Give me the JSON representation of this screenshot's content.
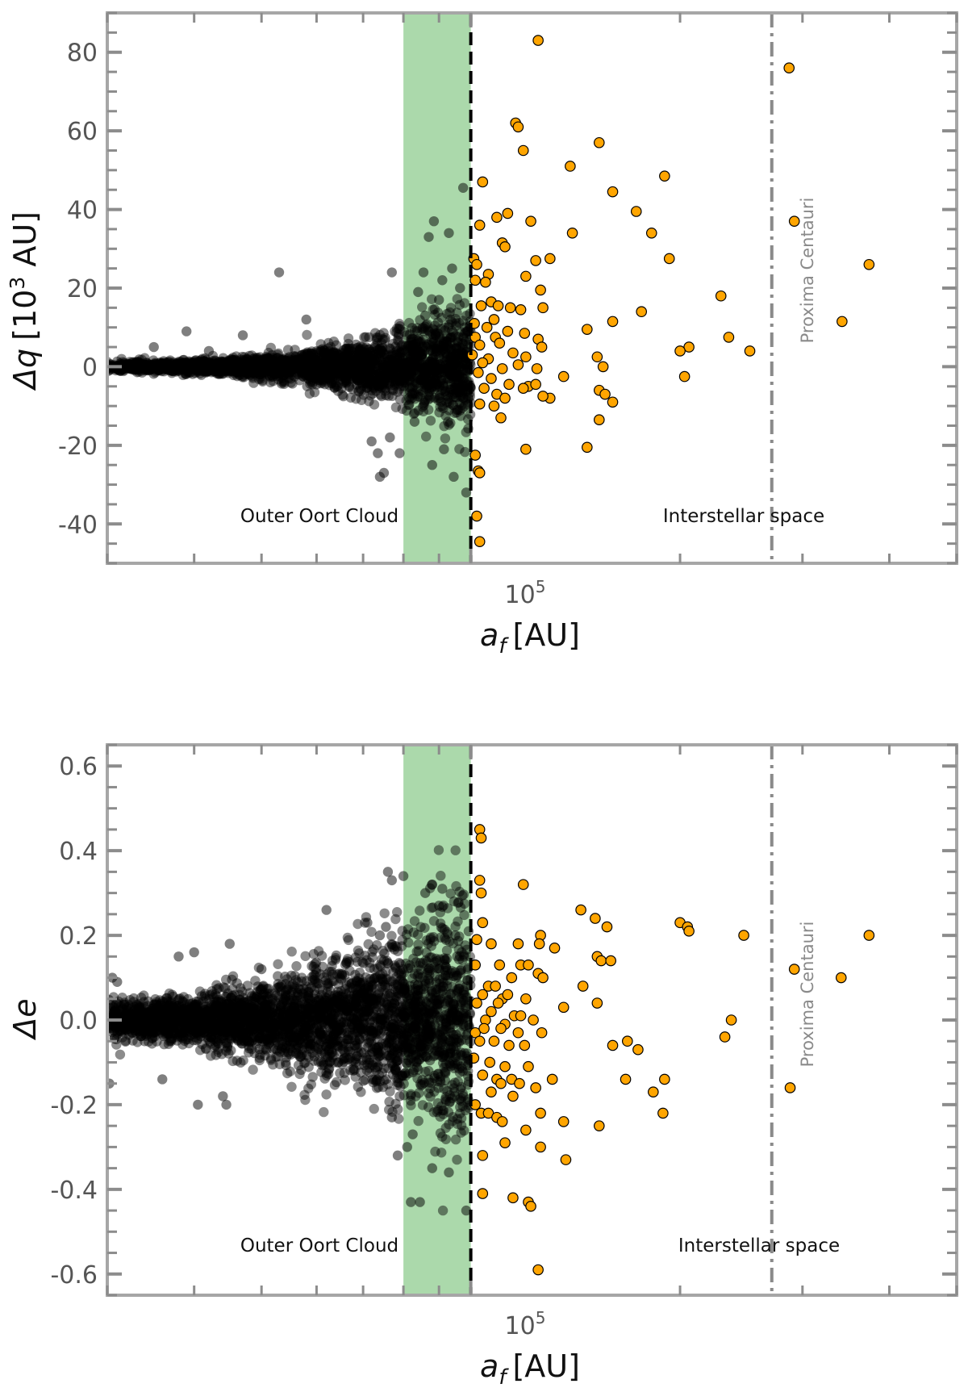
{
  "chart_data": [
    {
      "type": "scatter",
      "panel": "top",
      "xlabel_base": "a",
      "xlabel_sub": "f",
      "xlabel_unit": "[AU]",
      "ylabel_base": "Δq",
      "ylabel_unit_pre": "[10",
      "ylabel_unit_exp": "3",
      "ylabel_unit_post": " AU]",
      "x_scale": "log",
      "xlim": [
        30000,
        500000
      ],
      "ylim": [
        -50,
        90
      ],
      "x_tick_label_base": "10",
      "x_tick_label_exp": "5",
      "y_ticks": [
        80,
        60,
        40,
        20,
        0,
        -20,
        -40
      ],
      "y_tick_labels": [
        "80",
        "60",
        "40",
        "20",
        "0",
        "-20",
        "-40"
      ],
      "shaded_band": {
        "x_from": 80000,
        "x_to": 100000,
        "color": "#2ca02c"
      },
      "boundary_line": {
        "x": 100000,
        "style": "dashed",
        "color": "#000000"
      },
      "reference_line": {
        "x": 271000,
        "label": "Proxima Centauri",
        "style": "dash-dot",
        "color": "#8a8a8a"
      },
      "region_labels": [
        "Outer Oort Cloud",
        "Interstellar space"
      ],
      "inner_cloud": {
        "count": 2600,
        "seed": 11,
        "spread_base": 0.6,
        "spread_end": 8,
        "spread_power": 2.6,
        "color": "#000000"
      },
      "black_outliers": [
        {
          "x": 97500,
          "y": 45.5
        },
        {
          "x": 88500,
          "y": 37
        },
        {
          "x": 93000,
          "y": 34
        },
        {
          "x": 87000,
          "y": 33
        },
        {
          "x": 94000,
          "y": 25
        },
        {
          "x": 85500,
          "y": 24
        },
        {
          "x": 77000,
          "y": 24
        },
        {
          "x": 91000,
          "y": 22
        },
        {
          "x": 96500,
          "y": 20
        },
        {
          "x": 84000,
          "y": 19
        },
        {
          "x": 90000,
          "y": 17
        },
        {
          "x": 86000,
          "y": 13
        },
        {
          "x": 93500,
          "y": 12
        },
        {
          "x": 98000,
          "y": 10
        },
        {
          "x": 73500,
          "y": -22
        },
        {
          "x": 75000,
          "y": -27
        },
        {
          "x": 74000,
          "y": -28
        },
        {
          "x": 79000,
          "y": -22
        },
        {
          "x": 88000,
          "y": -25
        },
        {
          "x": 94500,
          "y": -28
        },
        {
          "x": 98500,
          "y": -32
        },
        {
          "x": 72000,
          "y": -19
        },
        {
          "x": 76500,
          "y": -18
        },
        {
          "x": 83000,
          "y": -14
        },
        {
          "x": 91500,
          "y": -21
        },
        {
          "x": 95500,
          "y": -11
        },
        {
          "x": 35000,
          "y": 5
        },
        {
          "x": 39000,
          "y": 9
        },
        {
          "x": 47000,
          "y": 8
        },
        {
          "x": 42000,
          "y": 4
        },
        {
          "x": 53000,
          "y": 24
        },
        {
          "x": 58000,
          "y": 12
        }
      ],
      "orange_points": [
        {
          "x": 125000,
          "y": 83
        },
        {
          "x": 287000,
          "y": 76
        },
        {
          "x": 116000,
          "y": 62
        },
        {
          "x": 117000,
          "y": 61
        },
        {
          "x": 153000,
          "y": 57
        },
        {
          "x": 119000,
          "y": 55
        },
        {
          "x": 139000,
          "y": 51
        },
        {
          "x": 190000,
          "y": 48.5
        },
        {
          "x": 104000,
          "y": 47
        },
        {
          "x": 160000,
          "y": 44.5
        },
        {
          "x": 173000,
          "y": 39.5
        },
        {
          "x": 113000,
          "y": 39
        },
        {
          "x": 109000,
          "y": 38
        },
        {
          "x": 122000,
          "y": 37
        },
        {
          "x": 292000,
          "y": 37
        },
        {
          "x": 103000,
          "y": 36
        },
        {
          "x": 140000,
          "y": 34
        },
        {
          "x": 182000,
          "y": 34
        },
        {
          "x": 111000,
          "y": 31.5
        },
        {
          "x": 101000,
          "y": 27.5
        },
        {
          "x": 112000,
          "y": 30.5
        },
        {
          "x": 130000,
          "y": 27.5
        },
        {
          "x": 193000,
          "y": 27.5
        },
        {
          "x": 102000,
          "y": 26
        },
        {
          "x": 124000,
          "y": 27
        },
        {
          "x": 374000,
          "y": 26
        },
        {
          "x": 106000,
          "y": 23.5
        },
        {
          "x": 120000,
          "y": 23
        },
        {
          "x": 101500,
          "y": 22
        },
        {
          "x": 105000,
          "y": 21.5
        },
        {
          "x": 126000,
          "y": 19.5
        },
        {
          "x": 229000,
          "y": 18
        },
        {
          "x": 107000,
          "y": 16.5
        },
        {
          "x": 103500,
          "y": 15.5
        },
        {
          "x": 109500,
          "y": 15.5
        },
        {
          "x": 114000,
          "y": 15
        },
        {
          "x": 127000,
          "y": 15
        },
        {
          "x": 118000,
          "y": 14.5
        },
        {
          "x": 176000,
          "y": 14
        },
        {
          "x": 108000,
          "y": 12
        },
        {
          "x": 160000,
          "y": 11.5
        },
        {
          "x": 342000,
          "y": 11.5
        },
        {
          "x": 101200,
          "y": 11
        },
        {
          "x": 105500,
          "y": 10
        },
        {
          "x": 147000,
          "y": 9.5
        },
        {
          "x": 113000,
          "y": 9
        },
        {
          "x": 119500,
          "y": 8.5
        },
        {
          "x": 101500,
          "y": 7.5
        },
        {
          "x": 235000,
          "y": 7.5
        },
        {
          "x": 108500,
          "y": 7.5
        },
        {
          "x": 125000,
          "y": 7
        },
        {
          "x": 110000,
          "y": 6
        },
        {
          "x": 103000,
          "y": 5.5
        },
        {
          "x": 126500,
          "y": 5
        },
        {
          "x": 206000,
          "y": 5
        },
        {
          "x": 200000,
          "y": 4
        },
        {
          "x": 252000,
          "y": 4
        },
        {
          "x": 100500,
          "y": 3
        },
        {
          "x": 115000,
          "y": 3.5
        },
        {
          "x": 120000,
          "y": 2.5
        },
        {
          "x": 106000,
          "y": 2
        },
        {
          "x": 152000,
          "y": 2.5
        },
        {
          "x": 104000,
          "y": 1
        },
        {
          "x": 117000,
          "y": 0.5
        },
        {
          "x": 111000,
          "y": -0.5
        },
        {
          "x": 124500,
          "y": -0.5
        },
        {
          "x": 155000,
          "y": 0
        },
        {
          "x": 102500,
          "y": -1.5
        },
        {
          "x": 136000,
          "y": -2.5
        },
        {
          "x": 203000,
          "y": -2.5
        },
        {
          "x": 107000,
          "y": -3
        },
        {
          "x": 113500,
          "y": -4.5
        },
        {
          "x": 121000,
          "y": -5
        },
        {
          "x": 119000,
          "y": -5.5
        },
        {
          "x": 124000,
          "y": -4.5
        },
        {
          "x": 104500,
          "y": -5.5
        },
        {
          "x": 153000,
          "y": -6
        },
        {
          "x": 109000,
          "y": -7
        },
        {
          "x": 156000,
          "y": -7
        },
        {
          "x": 130000,
          "y": -8
        },
        {
          "x": 112000,
          "y": -8
        },
        {
          "x": 127000,
          "y": -7.5
        },
        {
          "x": 160000,
          "y": -9
        },
        {
          "x": 103000,
          "y": -9.5
        },
        {
          "x": 108000,
          "y": -10
        },
        {
          "x": 153000,
          "y": -13.5
        },
        {
          "x": 110500,
          "y": -13
        },
        {
          "x": 147000,
          "y": -20.5
        },
        {
          "x": 120000,
          "y": -21
        },
        {
          "x": 101500,
          "y": -22.5
        },
        {
          "x": 102500,
          "y": -26.5
        },
        {
          "x": 103000,
          "y": -27
        },
        {
          "x": 102000,
          "y": -38
        },
        {
          "x": 103000,
          "y": -44.5
        }
      ]
    },
    {
      "type": "scatter",
      "panel": "bottom",
      "xlabel_base": "a",
      "xlabel_sub": "f",
      "xlabel_unit": "[AU]",
      "ylabel": "Δe",
      "x_scale": "log",
      "xlim": [
        30000,
        500000
      ],
      "ylim": [
        -0.65,
        0.65
      ],
      "x_tick_label_base": "10",
      "x_tick_label_exp": "5",
      "y_ticks": [
        0.6,
        0.4,
        0.2,
        0.0,
        -0.2,
        -0.4,
        -0.6
      ],
      "y_tick_labels": [
        "0.6",
        "0.4",
        "0.2",
        "0.0",
        "-0.2",
        "-0.4",
        "-0.6"
      ],
      "shaded_band": {
        "x_from": 80000,
        "x_to": 100000,
        "color": "#2ca02c"
      },
      "boundary_line": {
        "x": 100000,
        "style": "dashed",
        "color": "#000000"
      },
      "reference_line": {
        "x": 271000,
        "label": "Proxima Centauri",
        "style": "dash-dot",
        "color": "#8a8a8a"
      },
      "region_labels": [
        "Outer Oort Cloud",
        "Interstellar space"
      ],
      "inner_cloud": {
        "count": 3200,
        "seed": 29,
        "spread_base": 0.022,
        "spread_end": 0.14,
        "spread_power": 1.9,
        "color": "#000000"
      },
      "black_outliers": [
        {
          "x": 30500,
          "y": 0.1
        },
        {
          "x": 31000,
          "y": 0.09
        },
        {
          "x": 30200,
          "y": -0.15
        },
        {
          "x": 36000,
          "y": -0.14
        },
        {
          "x": 38000,
          "y": 0.15
        },
        {
          "x": 40000,
          "y": 0.16
        },
        {
          "x": 40500,
          "y": -0.2
        },
        {
          "x": 44000,
          "y": -0.18
        },
        {
          "x": 44500,
          "y": -0.2
        },
        {
          "x": 45000,
          "y": 0.18
        },
        {
          "x": 50000,
          "y": 0.12
        },
        {
          "x": 62000,
          "y": 0.26
        },
        {
          "x": 71000,
          "y": 0.23
        },
        {
          "x": 76000,
          "y": 0.35
        },
        {
          "x": 77000,
          "y": 0.33
        },
        {
          "x": 80000,
          "y": 0.34
        },
        {
          "x": 86000,
          "y": 0.3
        },
        {
          "x": 88000,
          "y": 0.32
        },
        {
          "x": 91000,
          "y": 0.31
        },
        {
          "x": 75500,
          "y": 0.22
        },
        {
          "x": 74000,
          "y": 0.2
        },
        {
          "x": 77000,
          "y": -0.23
        },
        {
          "x": 78500,
          "y": -0.32
        },
        {
          "x": 81000,
          "y": -0.3
        },
        {
          "x": 82500,
          "y": -0.27
        },
        {
          "x": 82000,
          "y": -0.43
        },
        {
          "x": 84500,
          "y": -0.43
        },
        {
          "x": 88000,
          "y": -0.35
        },
        {
          "x": 93000,
          "y": -0.36
        },
        {
          "x": 98500,
          "y": -0.45
        },
        {
          "x": 95000,
          "y": 0.2
        },
        {
          "x": 90000,
          "y": 0.27
        }
      ],
      "orange_points": [
        {
          "x": 103000,
          "y": 0.45
        },
        {
          "x": 103500,
          "y": 0.43
        },
        {
          "x": 103000,
          "y": 0.33
        },
        {
          "x": 103500,
          "y": 0.3
        },
        {
          "x": 119000,
          "y": 0.32
        },
        {
          "x": 104000,
          "y": 0.23
        },
        {
          "x": 144000,
          "y": 0.26
        },
        {
          "x": 151000,
          "y": 0.24
        },
        {
          "x": 157000,
          "y": 0.22
        },
        {
          "x": 200000,
          "y": 0.23
        },
        {
          "x": 205000,
          "y": 0.22
        },
        {
          "x": 206000,
          "y": 0.21
        },
        {
          "x": 247000,
          "y": 0.2
        },
        {
          "x": 374000,
          "y": 0.2
        },
        {
          "x": 102000,
          "y": 0.19
        },
        {
          "x": 107000,
          "y": 0.18
        },
        {
          "x": 126000,
          "y": 0.2
        },
        {
          "x": 125500,
          "y": 0.18
        },
        {
          "x": 117000,
          "y": 0.18
        },
        {
          "x": 132000,
          "y": 0.17
        },
        {
          "x": 152000,
          "y": 0.15
        },
        {
          "x": 154000,
          "y": 0.14
        },
        {
          "x": 159000,
          "y": 0.14
        },
        {
          "x": 101500,
          "y": 0.13
        },
        {
          "x": 110000,
          "y": 0.13
        },
        {
          "x": 118000,
          "y": 0.13
        },
        {
          "x": 121000,
          "y": 0.13
        },
        {
          "x": 125000,
          "y": 0.11
        },
        {
          "x": 292000,
          "y": 0.12
        },
        {
          "x": 341000,
          "y": 0.1
        },
        {
          "x": 114500,
          "y": 0.1
        },
        {
          "x": 106000,
          "y": 0.08
        },
        {
          "x": 108500,
          "y": 0.08
        },
        {
          "x": 127000,
          "y": 0.1
        },
        {
          "x": 145000,
          "y": 0.08
        },
        {
          "x": 104000,
          "y": 0.06
        },
        {
          "x": 111000,
          "y": 0.05
        },
        {
          "x": 113000,
          "y": 0.06
        },
        {
          "x": 120000,
          "y": 0.05
        },
        {
          "x": 102000,
          "y": 0.04
        },
        {
          "x": 109500,
          "y": 0.04
        },
        {
          "x": 136000,
          "y": 0.03
        },
        {
          "x": 152000,
          "y": 0.04
        },
        {
          "x": 107000,
          "y": 0.02
        },
        {
          "x": 115500,
          "y": 0.01
        },
        {
          "x": 118000,
          "y": 0.01
        },
        {
          "x": 105000,
          "y": 0.0
        },
        {
          "x": 112000,
          "y": -0.01
        },
        {
          "x": 123000,
          "y": 0.0
        },
        {
          "x": 237000,
          "y": 0.0
        },
        {
          "x": 101500,
          "y": -0.03
        },
        {
          "x": 104500,
          "y": -0.02
        },
        {
          "x": 110500,
          "y": -0.02
        },
        {
          "x": 117000,
          "y": -0.03
        },
        {
          "x": 126500,
          "y": -0.03
        },
        {
          "x": 232000,
          "y": -0.04
        },
        {
          "x": 103000,
          "y": -0.05
        },
        {
          "x": 108000,
          "y": -0.05
        },
        {
          "x": 113500,
          "y": -0.06
        },
        {
          "x": 119500,
          "y": -0.06
        },
        {
          "x": 160000,
          "y": -0.06
        },
        {
          "x": 168000,
          "y": -0.05
        },
        {
          "x": 174000,
          "y": -0.07
        },
        {
          "x": 101000,
          "y": -0.09
        },
        {
          "x": 106500,
          "y": -0.1
        },
        {
          "x": 112000,
          "y": -0.11
        },
        {
          "x": 121000,
          "y": -0.11
        },
        {
          "x": 104000,
          "y": -0.13
        },
        {
          "x": 109000,
          "y": -0.14
        },
        {
          "x": 110500,
          "y": -0.15
        },
        {
          "x": 114500,
          "y": -0.14
        },
        {
          "x": 117500,
          "y": -0.15
        },
        {
          "x": 124000,
          "y": -0.16
        },
        {
          "x": 131000,
          "y": -0.14
        },
        {
          "x": 167000,
          "y": -0.14
        },
        {
          "x": 190000,
          "y": -0.14
        },
        {
          "x": 183000,
          "y": -0.17
        },
        {
          "x": 107000,
          "y": -0.17
        },
        {
          "x": 115000,
          "y": -0.18
        },
        {
          "x": 101500,
          "y": -0.2
        },
        {
          "x": 103500,
          "y": -0.22
        },
        {
          "x": 106000,
          "y": -0.22
        },
        {
          "x": 109000,
          "y": -0.23
        },
        {
          "x": 111000,
          "y": -0.24
        },
        {
          "x": 126000,
          "y": -0.22
        },
        {
          "x": 136000,
          "y": -0.24
        },
        {
          "x": 189000,
          "y": -0.22
        },
        {
          "x": 153000,
          "y": -0.25
        },
        {
          "x": 288000,
          "y": -0.16
        },
        {
          "x": 120000,
          "y": -0.26
        },
        {
          "x": 112000,
          "y": -0.29
        },
        {
          "x": 126000,
          "y": -0.3
        },
        {
          "x": 104000,
          "y": -0.32
        },
        {
          "x": 137000,
          "y": -0.33
        },
        {
          "x": 104000,
          "y": -0.41
        },
        {
          "x": 115000,
          "y": -0.42
        },
        {
          "x": 121000,
          "y": -0.43
        },
        {
          "x": 122000,
          "y": -0.44
        },
        {
          "x": 125000,
          "y": -0.59
        }
      ]
    }
  ]
}
